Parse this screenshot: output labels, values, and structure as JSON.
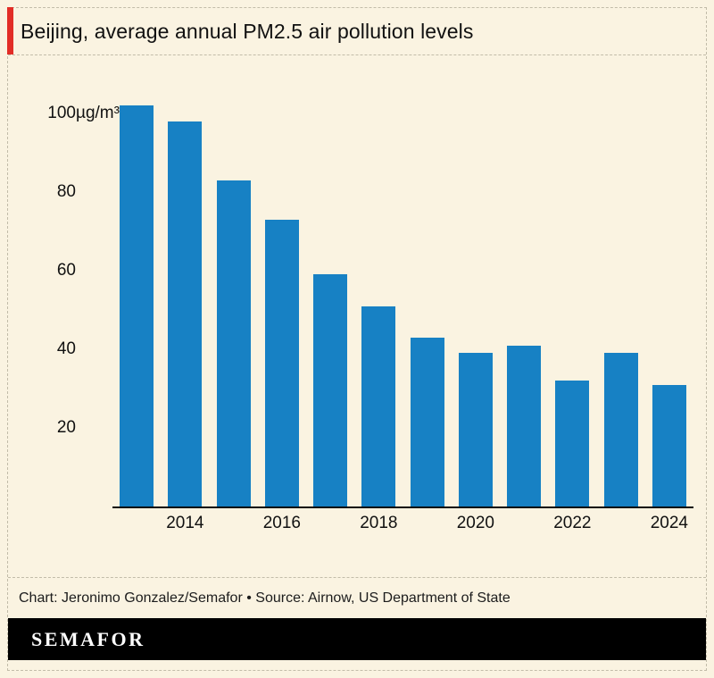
{
  "title": "Beijing, average annual PM2.5 air pollution levels",
  "credit": "Chart: Jeronimo Gonzalez/Semafor • Source: Airnow, US Department of State",
  "logo_text": "SEMAFOR",
  "colors": {
    "bar": "#1781c4",
    "background": "#faf3e1",
    "accent_red": "#e22d26",
    "logo_background": "#000000",
    "logo_text": "#ffffff",
    "axis_line": "#0a0a0a"
  },
  "chart_data": {
    "type": "bar",
    "title": "Beijing, average annual PM2.5 air pollution levels",
    "unit": "µg/m³",
    "categories": [
      "2013",
      "2014",
      "2015",
      "2016",
      "2017",
      "2018",
      "2019",
      "2020",
      "2021",
      "2022",
      "2023",
      "2024"
    ],
    "values": [
      102,
      98,
      83,
      73,
      59,
      51,
      43,
      39,
      41,
      32,
      39,
      31
    ],
    "xtick_labels": [
      "2014",
      "2016",
      "2018",
      "2020",
      "2022",
      "2024"
    ],
    "yticks": [
      {
        "value": 100,
        "label": "100",
        "unit": "µg/m³"
      },
      {
        "value": 80,
        "label": "80",
        "unit": ""
      },
      {
        "value": 60,
        "label": "60",
        "unit": ""
      },
      {
        "value": 40,
        "label": "40",
        "unit": ""
      },
      {
        "value": 20,
        "label": "20",
        "unit": ""
      }
    ],
    "ylim": [
      0,
      110
    ],
    "grid": false,
    "legend": false
  }
}
